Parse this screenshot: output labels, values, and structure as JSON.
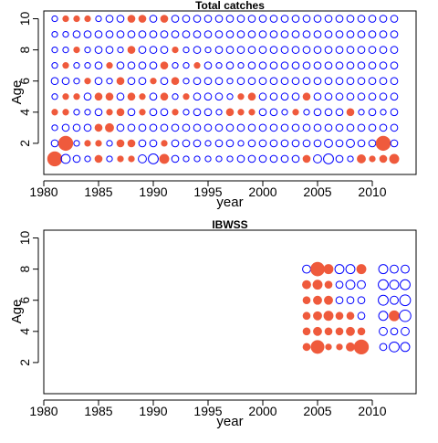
{
  "chart_data": [
    {
      "type": "scatter",
      "title": "Total catches",
      "xlabel": "year",
      "ylabel": "Age",
      "xlim": [
        1980,
        2014
      ],
      "ylim": [
        0,
        10.5
      ],
      "x_ticks": [
        1980,
        1985,
        1990,
        1995,
        2000,
        2005,
        2010
      ],
      "y_ticks": [
        2,
        4,
        6,
        8,
        10
      ],
      "years": [
        1981,
        1982,
        1983,
        1984,
        1985,
        1986,
        1987,
        1988,
        1989,
        1990,
        1991,
        1992,
        1993,
        1994,
        1995,
        1996,
        1997,
        1998,
        1999,
        2000,
        2001,
        2002,
        2003,
        2004,
        2005,
        2006,
        2007,
        2008,
        2009,
        2010,
        2011,
        2012
      ],
      "ages": [
        1,
        2,
        3,
        4,
        5,
        6,
        7,
        8,
        9,
        10
      ],
      "positive_color": "#ef5a3c",
      "negative_color": "#0000ff",
      "legend": "none",
      "grid": false,
      "residuals": [
        [
          1.2,
          -0.5,
          -0.3,
          -0.2,
          0.3,
          -0.2,
          0.2,
          0.2,
          -0.4,
          -0.6,
          0.5,
          -0.3,
          -0.2,
          -0.2,
          -0.2,
          -0.2,
          -0.2,
          -0.3,
          -0.3,
          -0.3,
          -0.3,
          -0.3,
          -0.3,
          0.3,
          -0.4,
          -0.6,
          -0.3,
          -0.2,
          0.4,
          0.2,
          0.3,
          0.5
        ],
        [
          -0.3,
          1.2,
          -0.2,
          0.2,
          0.2,
          -0.2,
          0.3,
          0.3,
          -0.3,
          -0.3,
          0.2,
          -0.3,
          -0.3,
          -0.3,
          -0.2,
          -0.3,
          -0.3,
          -0.2,
          -0.3,
          -0.3,
          -0.3,
          -0.3,
          -0.3,
          -0.3,
          -0.3,
          -0.4,
          -0.3,
          -0.4,
          -0.3,
          -0.3,
          1.2,
          -0.3
        ],
        [
          -0.2,
          -0.3,
          -0.3,
          -0.3,
          0.3,
          0.4,
          -0.3,
          -0.3,
          -0.3,
          -0.3,
          -0.3,
          -0.3,
          -0.3,
          -0.3,
          -0.3,
          -0.3,
          -0.3,
          -0.3,
          -0.3,
          -0.3,
          -0.3,
          -0.3,
          -0.3,
          -0.3,
          -0.3,
          -0.3,
          -0.3,
          -0.3,
          -0.3,
          -0.3,
          -0.3,
          -0.3
        ],
        [
          0.2,
          0.2,
          -0.2,
          -0.2,
          -0.3,
          0.2,
          0.3,
          -0.3,
          0.2,
          -0.3,
          -0.3,
          0.2,
          -0.2,
          -0.3,
          -0.3,
          -0.2,
          0.3,
          0.2,
          0.2,
          -0.3,
          -0.3,
          -0.2,
          0.2,
          -0.2,
          -0.3,
          -0.3,
          -0.3,
          0.3,
          -0.2,
          -0.3,
          -0.2,
          -0.3
        ],
        [
          -0.2,
          0.2,
          0.2,
          -0.3,
          0.3,
          0.3,
          -0.3,
          0.3,
          0.2,
          -0.3,
          0.3,
          -0.2,
          0.2,
          -0.3,
          -0.3,
          -0.3,
          -0.2,
          0.2,
          0.3,
          -0.3,
          -0.3,
          -0.3,
          -0.3,
          0.3,
          -0.3,
          -0.3,
          -0.3,
          -0.3,
          -0.3,
          -0.3,
          -0.3,
          -0.3
        ],
        [
          -0.3,
          -0.3,
          -0.2,
          0.2,
          -0.3,
          -0.2,
          0.3,
          -0.3,
          -0.3,
          0.2,
          -0.3,
          0.3,
          -0.2,
          -0.3,
          -0.3,
          -0.3,
          -0.2,
          -0.3,
          -0.3,
          -0.3,
          -0.3,
          -0.3,
          -0.3,
          -0.3,
          -0.3,
          -0.3,
          -0.3,
          -0.3,
          -0.3,
          -0.3,
          -0.3,
          -0.3
        ],
        [
          -0.2,
          0.2,
          -0.2,
          -0.2,
          -0.3,
          0.2,
          -0.3,
          -0.3,
          -0.3,
          -0.3,
          0.3,
          -0.2,
          -0.2,
          0.2,
          -0.3,
          -0.2,
          -0.3,
          -0.2,
          -0.3,
          -0.3,
          -0.3,
          -0.3,
          -0.3,
          -0.3,
          -0.3,
          -0.3,
          -0.3,
          -0.3,
          -0.3,
          -0.3,
          -0.3,
          -0.3
        ],
        [
          -0.2,
          -0.2,
          0.2,
          -0.2,
          -0.3,
          -0.3,
          -0.2,
          0.3,
          -0.3,
          -0.3,
          -0.3,
          0.2,
          -0.2,
          -0.3,
          -0.2,
          -0.3,
          -0.3,
          -0.3,
          -0.3,
          -0.3,
          -0.3,
          -0.3,
          -0.3,
          -0.3,
          -0.3,
          -0.3,
          -0.3,
          -0.3,
          -0.3,
          -0.3,
          -0.3,
          -0.3
        ],
        [
          -0.2,
          -0.2,
          -0.3,
          -0.3,
          -0.3,
          -0.3,
          -0.3,
          -0.3,
          -0.3,
          -0.3,
          -0.3,
          -0.3,
          -0.3,
          -0.3,
          -0.3,
          -0.3,
          -0.3,
          -0.3,
          -0.3,
          -0.3,
          -0.3,
          -0.3,
          -0.3,
          -0.3,
          -0.3,
          -0.3,
          -0.3,
          -0.3,
          -0.3,
          -0.3,
          -0.3,
          -0.3
        ],
        [
          -0.2,
          0.2,
          0.2,
          0.2,
          -0.2,
          -0.3,
          -0.3,
          0.3,
          0.3,
          -0.3,
          0.3,
          -0.3,
          -0.3,
          -0.3,
          -0.3,
          -0.3,
          -0.3,
          -0.3,
          -0.3,
          -0.3,
          -0.3,
          -0.3,
          -0.3,
          -0.3,
          -0.3,
          -0.3,
          -0.3,
          -0.3,
          -0.3,
          -0.3,
          -0.3,
          -0.3
        ]
      ]
    },
    {
      "type": "scatter",
      "title": "IBWSS",
      "xlabel": "year",
      "ylabel": "Age",
      "xlim": [
        1980,
        2014
      ],
      "ylim": [
        0,
        10.5
      ],
      "x_ticks": [
        1980,
        1985,
        1990,
        1995,
        2000,
        2005,
        2010
      ],
      "y_ticks": [
        2,
        4,
        6,
        8,
        10
      ],
      "years": [
        2004,
        2005,
        2006,
        2007,
        2008,
        2009,
        2011,
        2012,
        2013
      ],
      "ages": [
        3,
        4,
        5,
        6,
        7,
        8
      ],
      "positive_color": "#ef5a3c",
      "negative_color": "#0000ff",
      "legend": "none",
      "grid": false,
      "residuals": [
        [
          0.3,
          1.0,
          0.2,
          0.2,
          0.4,
          1.2,
          -0.3,
          -0.6,
          -0.5
        ],
        [
          0.3,
          0.4,
          0.3,
          0.3,
          0.4,
          0.3,
          -0.4,
          -0.3,
          -0.4
        ],
        [
          0.3,
          0.4,
          0.5,
          0.3,
          0.3,
          -0.3,
          -0.5,
          0.6,
          -0.8
        ],
        [
          0.3,
          0.4,
          0.4,
          -0.3,
          -0.3,
          -0.3,
          -0.6,
          -0.4,
          -0.7
        ],
        [
          0.4,
          0.5,
          0.3,
          -0.3,
          -0.5,
          -0.4,
          -0.6,
          -0.5,
          -0.6
        ],
        [
          -0.4,
          1.1,
          0.5,
          -0.5,
          -0.5,
          0.5,
          -0.5,
          -0.4,
          -0.4
        ]
      ]
    }
  ]
}
